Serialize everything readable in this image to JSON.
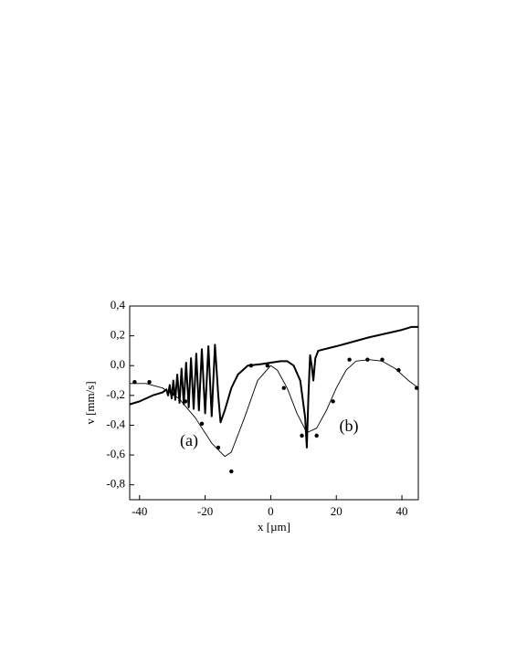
{
  "chart_data": {
    "type": "line",
    "xlabel": "x [µm]",
    "ylabel": "v [mm/s]",
    "annotations": [
      "(a)",
      "(b)"
    ],
    "xlim": [
      -43,
      45
    ],
    "ylim": [
      -0.9,
      0.4
    ],
    "xticks": [
      -40,
      -20,
      0,
      20,
      40
    ],
    "yticks": [
      {
        "value": 0.4,
        "label": "0,4"
      },
      {
        "value": 0.2,
        "label": "0,2"
      },
      {
        "value": 0.0,
        "label": "0,0"
      },
      {
        "value": -0.2,
        "label": "-0,2"
      },
      {
        "value": -0.4,
        "label": "-0,4"
      },
      {
        "value": -0.6,
        "label": "-0,6"
      },
      {
        "value": -0.8,
        "label": "-0,8"
      }
    ],
    "series": [
      {
        "style": "line",
        "color": "#000000",
        "width": 2,
        "x": [
          -43,
          -40,
          -36,
          -33,
          -31.8,
          -31.3,
          -30.8,
          -30.2,
          -29.7,
          -29.1,
          -28.5,
          -27.8,
          -27.2,
          -26.5,
          -25.8,
          -25,
          -24.3,
          -23.5,
          -22.7,
          -21.9,
          -21,
          -20,
          -19,
          -18,
          -17,
          -16,
          -15.3,
          -14,
          -12,
          -10,
          -7,
          -3,
          0,
          3,
          5,
          7,
          9,
          10.5,
          11,
          11.5,
          12,
          12.5,
          13,
          13.6,
          14.5,
          20,
          30,
          40,
          43,
          45
        ],
        "values": [
          -0.26,
          -0.24,
          -0.2,
          -0.18,
          -0.16,
          -0.2,
          -0.13,
          -0.22,
          -0.1,
          -0.23,
          -0.06,
          -0.25,
          -0.02,
          -0.26,
          0.02,
          -0.28,
          0.05,
          -0.29,
          0.08,
          -0.3,
          0.11,
          -0.32,
          0.13,
          -0.34,
          0.14,
          -0.2,
          -0.38,
          -0.3,
          -0.15,
          -0.06,
          0.0,
          0.01,
          0.02,
          0.03,
          0.03,
          0.0,
          -0.1,
          -0.35,
          -0.55,
          -0.2,
          0.07,
          0.0,
          -0.1,
          0.05,
          0.1,
          0.13,
          0.19,
          0.24,
          0.26,
          0.26
        ]
      },
      {
        "style": "line",
        "color": "#000000",
        "width": 0.9,
        "x": [
          -43,
          -38,
          -33,
          -28,
          -23,
          -18,
          -14,
          -12,
          -8,
          -4,
          0,
          2,
          5,
          8,
          11,
          14,
          17,
          20,
          23,
          26,
          30,
          34,
          38,
          42,
          45
        ],
        "values": [
          -0.12,
          -0.12,
          -0.15,
          -0.22,
          -0.35,
          -0.52,
          -0.61,
          -0.58,
          -0.35,
          -0.1,
          0.0,
          -0.03,
          -0.15,
          -0.32,
          -0.45,
          -0.42,
          -0.3,
          -0.15,
          -0.03,
          0.03,
          0.04,
          0.03,
          -0.02,
          -0.1,
          -0.15
        ]
      },
      {
        "style": "scatter",
        "color": "#000000",
        "x": [
          -41.5,
          -37,
          -30,
          -26,
          -21,
          -16,
          -12,
          -6,
          -1,
          4,
          9.5,
          14,
          19,
          24,
          29.5,
          34,
          39,
          44.5
        ],
        "values": [
          -0.11,
          -0.11,
          -0.19,
          -0.24,
          -0.39,
          -0.55,
          -0.71,
          0.0,
          0.0,
          -0.15,
          -0.47,
          -0.47,
          -0.24,
          0.04,
          0.04,
          0.04,
          -0.03,
          -0.15
        ]
      }
    ]
  }
}
